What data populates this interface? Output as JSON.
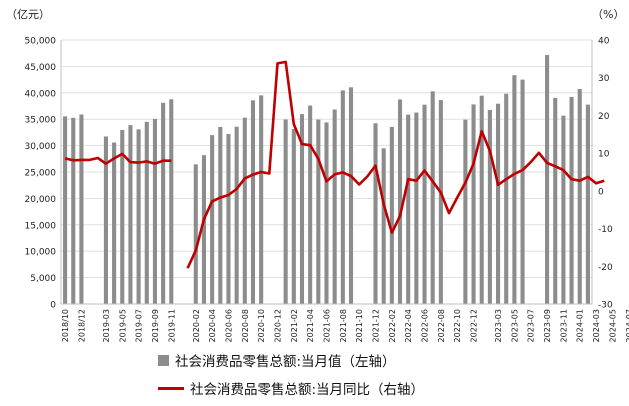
{
  "chart_data": {
    "type": "bar+line",
    "left_axis_unit": "（亿元）",
    "right_axis_unit": "（%）",
    "left_ticks": [
      "0",
      "5,000",
      "10,000",
      "15,000",
      "20,000",
      "25,000",
      "30,000",
      "35,000",
      "40,000",
      "45,000",
      "50,000"
    ],
    "right_ticks": [
      "-30",
      "-20",
      "-10",
      "0",
      "10",
      "20",
      "30",
      "40"
    ],
    "ylim_left": [
      0,
      50000
    ],
    "ylim_right": [
      -30,
      40
    ],
    "x_start": "2018-10",
    "x_labels": [
      "2018/10",
      "2018/12",
      "2019-03",
      "2019-05",
      "2019-07",
      "2019-09",
      "2019-11",
      "2020-02",
      "2020-04",
      "2020-06",
      "2020-08",
      "2020-10",
      "2020-12",
      "2021-02",
      "2021-04",
      "2021-06",
      "2021-08",
      "2021-10",
      "2021-12",
      "2022-02",
      "2022-04",
      "2022-06",
      "2022-08",
      "2022-10",
      "2022-12",
      "2023-03",
      "2023-05",
      "2023-07",
      "2023-09",
      "2023-11",
      "2024-01",
      "2024-03",
      "2024-05",
      "2024-07"
    ],
    "x_label_indices": [
      0,
      2,
      5,
      7,
      9,
      11,
      13,
      16,
      18,
      20,
      22,
      24,
      26,
      28,
      30,
      32,
      34,
      36,
      38,
      40,
      42,
      44,
      46,
      48,
      50,
      53,
      55,
      57,
      59,
      61,
      63,
      65,
      67,
      69
    ],
    "series": [
      {
        "name": "社会消费品零售总额:当月值（左轴）",
        "type": "bar",
        "color": "#8c8c8c",
        "values": [
          35534,
          35260,
          35893,
          null,
          null,
          31726,
          30586,
          32956,
          33878,
          33073,
          34495,
          35048,
          38104,
          38777,
          null,
          null,
          26450,
          28178,
          31973,
          33526,
          32203,
          33571,
          35295,
          38576,
          39514,
          null,
          null,
          34933,
          33153,
          35964,
          37586,
          34926,
          34395,
          36833,
          40454,
          41043,
          null,
          null,
          34233,
          29483,
          33547,
          38742,
          35870,
          36258,
          37745,
          40271,
          38615,
          null,
          null,
          34910,
          37803,
          39450,
          36761,
          37933,
          39826,
          43333,
          42495,
          null,
          null,
          47149,
          39020,
          35670,
          39211,
          40716,
          37757
        ]
      },
      {
        "name": "社会消费品零售总额:当月同比（右轴）",
        "type": "line",
        "color": "#c00000",
        "values": [
          8.6,
          8.1,
          8.2,
          8.2,
          8.7,
          7.2,
          8.6,
          9.8,
          7.6,
          7.5,
          7.8,
          7.2,
          8.0,
          8.0,
          null,
          -20.5,
          -15.8,
          -7.5,
          -2.8,
          -1.8,
          -1.1,
          0.5,
          3.3,
          4.3,
          5.0,
          4.6,
          33.8,
          34.2,
          17.7,
          12.4,
          12.1,
          8.5,
          2.5,
          4.4,
          4.9,
          3.9,
          1.7,
          3.8,
          6.7,
          -3.5,
          -11.1,
          -6.7,
          3.1,
          2.7,
          5.4,
          2.5,
          -0.5,
          -5.9,
          -1.8,
          2.2,
          7.2,
          15.8,
          10.6,
          1.6,
          3.1,
          4.5,
          5.5,
          7.6,
          10.1,
          7.4,
          6.5,
          5.5,
          3.1,
          2.7,
          3.7,
          2.0,
          2.7
        ]
      }
    ]
  },
  "legend": {
    "bar_label": "社会消费品零售总额:当月值（左轴）",
    "line_label": "社会消费品零售总额:当月同比（右轴）"
  }
}
